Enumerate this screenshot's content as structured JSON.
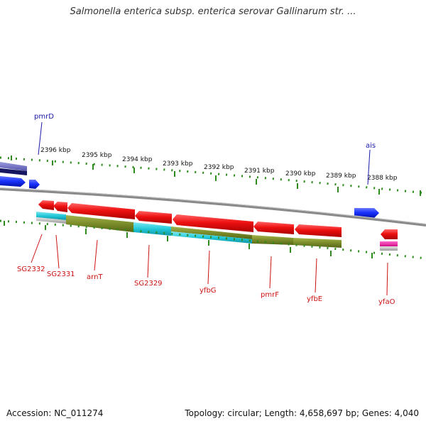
{
  "title": "Salmonella enterica subsp. enterica serovar Gallinarum str. ...",
  "footer": {
    "accession": "Accession: NC_011274",
    "summary": "Topology: circular; Length: 4,658,697 bp; Genes: 4,040"
  },
  "kbp_labels": [
    "2396 kbp",
    "2395 kbp",
    "2394 kbp",
    "2393 kbp",
    "2392 kbp",
    "2391 kbp",
    "2390 kbp",
    "2389 kbp",
    "2388 kbp"
  ],
  "top_genes": [
    "pmrD",
    "ais"
  ],
  "bottom_genes": [
    "SG2332",
    "SG2331",
    "arnT",
    "SG2329",
    "yfbG",
    "pmrF",
    "yfbE",
    "yfaO"
  ],
  "colors": {
    "forward_gene": "#1a33ff",
    "reverse_gene": "#ee1111",
    "cog_olive": "#7a8c2a",
    "cog_cyan": "#22c8d8",
    "tick": "#2e8b1e",
    "backbone": "#8a8a8a",
    "top_label": "#1a1aaa",
    "bottom_label": "#cc1111"
  }
}
